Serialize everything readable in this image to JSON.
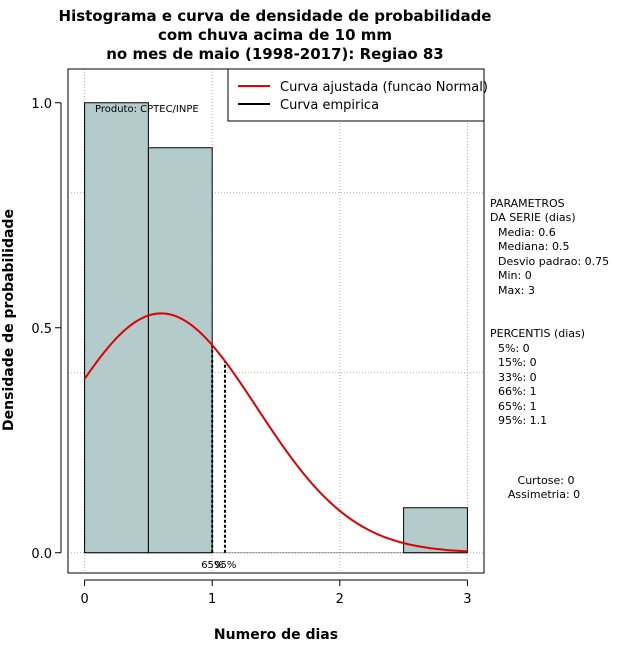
{
  "chart_data": {
    "type": "bar",
    "title_lines": [
      "Histograma e curva de densidade de probabilidade",
      "com chuva acima de 10 mm",
      "no mes de maio (1998-2017): Regiao 83"
    ],
    "xlabel": "Numero de dias",
    "ylabel": "Densidade de probabilidade",
    "xlim": [
      -0.13,
      3.13
    ],
    "ylim": [
      -0.045,
      1.075
    ],
    "x_ticks": [
      "0",
      "1",
      "2",
      "3"
    ],
    "y_ticks": [
      "0.0",
      "0.5",
      "1.0"
    ],
    "x_grid": [
      0,
      1,
      2,
      3
    ],
    "y_grid": [
      0,
      0.4,
      0.8
    ],
    "bins": [
      {
        "x0": 0,
        "x1": 0.5,
        "density": 1.0
      },
      {
        "x0": 0.5,
        "x1": 1.0,
        "density": 0.9
      },
      {
        "x0": 2.5,
        "x1": 3.0,
        "density": 0.1
      }
    ],
    "bar_color": "#b4cbcb",
    "normal_curve": {
      "mean": 0.6,
      "sd": 0.75,
      "x_from": 0,
      "x_to": 3,
      "color": "#e00000"
    },
    "percentile_lines": [
      {
        "x": 1.0,
        "label": "65%"
      },
      {
        "x": 1.1,
        "label": "95%"
      }
    ],
    "legend": [
      {
        "label": "Curva ajustada (funcao Normal)",
        "color": "#e00000"
      },
      {
        "label": "Curva empirica",
        "color": "#000000"
      }
    ],
    "annotation": "Produto: CPTEC/INPE",
    "parametros": {
      "heading": [
        "PARAMETROS",
        "DA SERIE (dias)"
      ],
      "lines": [
        "Media: 0.6",
        "Mediana: 0.5",
        "Desvio padrao: 0.75",
        "Min: 0",
        "Max: 3"
      ]
    },
    "percentis": {
      "heading": "PERCENTIS (dias)",
      "lines": [
        "5%: 0",
        "15%: 0",
        "33%: 0",
        "66%: 1",
        "65%: 1",
        "95%: 1.1"
      ]
    },
    "shape_stats": [
      "Curtose: 0",
      "Assimetria: 0"
    ]
  }
}
